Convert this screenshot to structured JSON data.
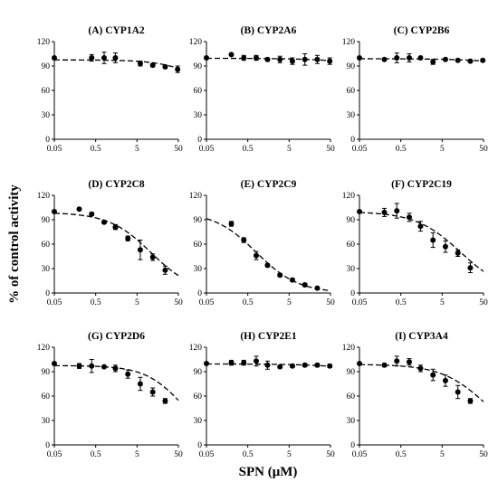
{
  "figure": {
    "ylabel": "% of control activity",
    "xlabel": "SPN (μM)"
  },
  "chart_data": [
    {
      "type": "scatter",
      "title": "(A) CYP1A2",
      "x": [
        0.05,
        0.2,
        0.4,
        0.8,
        1.5,
        3,
        6,
        12,
        24,
        48
      ],
      "y": [
        100,
        null,
        100,
        100,
        100,
        null,
        93,
        91,
        89,
        86
      ],
      "err": [
        0,
        0,
        4,
        7,
        6,
        0,
        3,
        2,
        2,
        4
      ],
      "xlim": [
        0.05,
        50
      ],
      "ylim": [
        0,
        120
      ],
      "xscale": "log",
      "xticks": [
        "0.05",
        "0.5",
        "5",
        "50"
      ],
      "yticks": [
        0,
        30,
        60,
        90,
        120
      ],
      "fit": {
        "top": 97.5,
        "bottom": 50,
        "ic50": 200,
        "hill": 0.9
      }
    },
    {
      "type": "scatter",
      "title": "(B) CYP2A6",
      "x": [
        0.05,
        0.2,
        0.4,
        0.8,
        1.5,
        3,
        6,
        12,
        24,
        48
      ],
      "y": [
        100,
        104,
        100,
        100,
        98,
        98,
        96,
        98,
        98,
        96
      ],
      "err": [
        0,
        0,
        3,
        3,
        2,
        4,
        4,
        7,
        5,
        4
      ],
      "xlim": [
        0.05,
        50
      ],
      "ylim": [
        0,
        120
      ],
      "xscale": "log",
      "xticks": [
        "0.05",
        "0.5",
        "5",
        "50"
      ],
      "yticks": [
        0,
        30,
        60,
        90,
        120
      ],
      "fit": {
        "top": 99.5,
        "bottom": 50,
        "ic50": 5000,
        "hill": 0.6
      }
    },
    {
      "type": "scatter",
      "title": "(C) CYP2B6",
      "x": [
        0.05,
        0.2,
        0.4,
        0.8,
        1.5,
        3,
        6,
        12,
        24,
        48
      ],
      "y": [
        100,
        98,
        100,
        100,
        100,
        95,
        98,
        97,
        96,
        97
      ],
      "err": [
        0,
        0,
        6,
        5,
        0,
        3,
        1,
        1,
        1,
        1
      ],
      "xlim": [
        0.05,
        50
      ],
      "ylim": [
        0,
        120
      ],
      "xscale": "log",
      "xticks": [
        "0.05",
        "0.5",
        "5",
        "50"
      ],
      "yticks": [
        0,
        30,
        60,
        90,
        120
      ],
      "fit": {
        "top": 99,
        "bottom": 50,
        "ic50": 5000,
        "hill": 0.6
      }
    },
    {
      "type": "scatter",
      "title": "(D) CYP2C8",
      "x": [
        0.05,
        0.2,
        0.4,
        0.8,
        1.5,
        3,
        6,
        12,
        24,
        48
      ],
      "y": [
        100,
        103,
        97,
        87,
        81,
        67,
        53,
        44,
        28,
        null
      ],
      "err": [
        0,
        0,
        2,
        2,
        3,
        3,
        12,
        4,
        5,
        0
      ],
      "xlim": [
        0.05,
        50
      ],
      "ylim": [
        0,
        120
      ],
      "xscale": "log",
      "xticks": [
        "0.05",
        "0.5",
        "5",
        "50"
      ],
      "yticks": [
        0,
        30,
        60,
        90,
        120
      ],
      "fit": {
        "top": 99,
        "bottom": 0,
        "ic50": 11,
        "hill": 0.85
      }
    },
    {
      "type": "scatter",
      "title": "(E) CYP2C9",
      "x": [
        0.05,
        0.2,
        0.4,
        0.8,
        1.5,
        3,
        6,
        12,
        24,
        48
      ],
      "y": [
        null,
        85,
        65,
        46,
        34,
        22,
        16,
        10,
        6,
        null
      ],
      "err": [
        0,
        3,
        3,
        5,
        2,
        2,
        2,
        2,
        1,
        0
      ],
      "xlim": [
        0.05,
        50
      ],
      "ylim": [
        0,
        120
      ],
      "xscale": "log",
      "xticks": [
        "0.05",
        "0.5",
        "5",
        "50"
      ],
      "yticks": [
        0,
        30,
        60,
        90,
        120
      ],
      "fit": {
        "top": 100,
        "bottom": 0,
        "ic50": 0.8,
        "hill": 0.85
      }
    },
    {
      "type": "scatter",
      "title": "(F) CYP2C19",
      "x": [
        0.05,
        0.2,
        0.4,
        0.8,
        1.5,
        3,
        6,
        12,
        24,
        48
      ],
      "y": [
        100,
        99,
        101,
        93,
        82,
        65,
        57,
        49,
        31,
        null
      ],
      "err": [
        0,
        5,
        9,
        5,
        6,
        9,
        7,
        4,
        6,
        0
      ],
      "xlim": [
        0.05,
        50
      ],
      "ylim": [
        0,
        120
      ],
      "xscale": "log",
      "xticks": [
        "0.05",
        "0.5",
        "5",
        "50"
      ],
      "yticks": [
        0,
        30,
        60,
        90,
        120
      ],
      "fit": {
        "top": 100,
        "bottom": 0,
        "ic50": 14,
        "hill": 0.8
      }
    },
    {
      "type": "scatter",
      "title": "(G) CYP2D6",
      "x": [
        0.05,
        0.2,
        0.4,
        0.8,
        1.5,
        3,
        6,
        12,
        24,
        48
      ],
      "y": [
        100,
        97,
        97,
        96,
        94,
        87,
        75,
        65,
        54,
        null
      ],
      "err": [
        0,
        3,
        8,
        0,
        4,
        5,
        8,
        5,
        3,
        0
      ],
      "xlim": [
        0.05,
        50
      ],
      "ylim": [
        0,
        120
      ],
      "xscale": "log",
      "xticks": [
        "0.05",
        "0.5",
        "5",
        "50"
      ],
      "yticks": [
        0,
        30,
        60,
        90,
        120
      ],
      "fit": {
        "top": 97.5,
        "bottom": 0,
        "ic50": 65,
        "hill": 0.95
      }
    },
    {
      "type": "scatter",
      "title": "(H) CYP2E1",
      "x": [
        0.05,
        0.2,
        0.4,
        0.8,
        1.5,
        3,
        6,
        12,
        24,
        48
      ],
      "y": [
        100,
        101,
        101,
        103,
        98,
        96,
        97,
        98,
        98,
        97
      ],
      "err": [
        0,
        3,
        3,
        6,
        5,
        0,
        2,
        2,
        2,
        2
      ],
      "xlim": [
        0.05,
        50
      ],
      "ylim": [
        0,
        120
      ],
      "xscale": "log",
      "xticks": [
        "0.05",
        "0.5",
        "5",
        "50"
      ],
      "yticks": [
        0,
        30,
        60,
        90,
        120
      ],
      "fit": {
        "top": 99.5,
        "bottom": 50,
        "ic50": 5000,
        "hill": 0.6
      }
    },
    {
      "type": "scatter",
      "title": "(I) CYP3A4",
      "x": [
        0.05,
        0.2,
        0.4,
        0.8,
        1.5,
        3,
        6,
        12,
        24,
        48
      ],
      "y": [
        100,
        98,
        103,
        102,
        94,
        86,
        79,
        65,
        54,
        null
      ],
      "err": [
        0,
        2,
        6,
        4,
        4,
        7,
        7,
        8,
        3,
        0
      ],
      "xlim": [
        0.05,
        50
      ],
      "ylim": [
        0,
        120
      ],
      "xscale": "log",
      "xticks": [
        "0.05",
        "0.5",
        "5",
        "50"
      ],
      "yticks": [
        0,
        30,
        60,
        90,
        120
      ],
      "fit": {
        "top": 99,
        "bottom": 0,
        "ic50": 60,
        "hill": 0.8
      }
    }
  ]
}
